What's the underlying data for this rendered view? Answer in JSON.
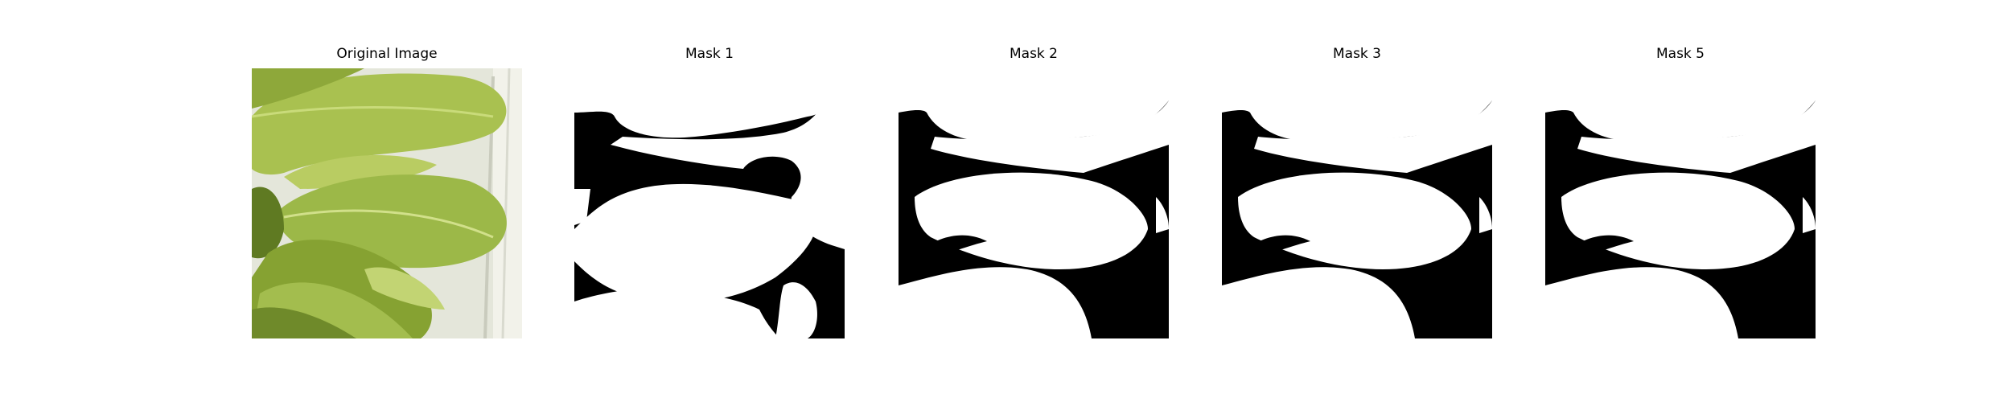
{
  "panels": [
    {
      "title": "Original Image",
      "kind": "photo",
      "subject": "green-leaves"
    },
    {
      "title": "Mask 1",
      "kind": "mask"
    },
    {
      "title": "Mask 2",
      "kind": "mask"
    },
    {
      "title": "Mask 3",
      "kind": "mask"
    },
    {
      "title": "Mask 5",
      "kind": "mask"
    }
  ],
  "colors": {
    "background": "#ffffff",
    "mask_background": "#000000",
    "mask_foreground": "#ffffff",
    "leaf_light": "#b5c95a",
    "leaf_dark": "#6f8a2a",
    "photo_bg": "#e6e6dc"
  }
}
